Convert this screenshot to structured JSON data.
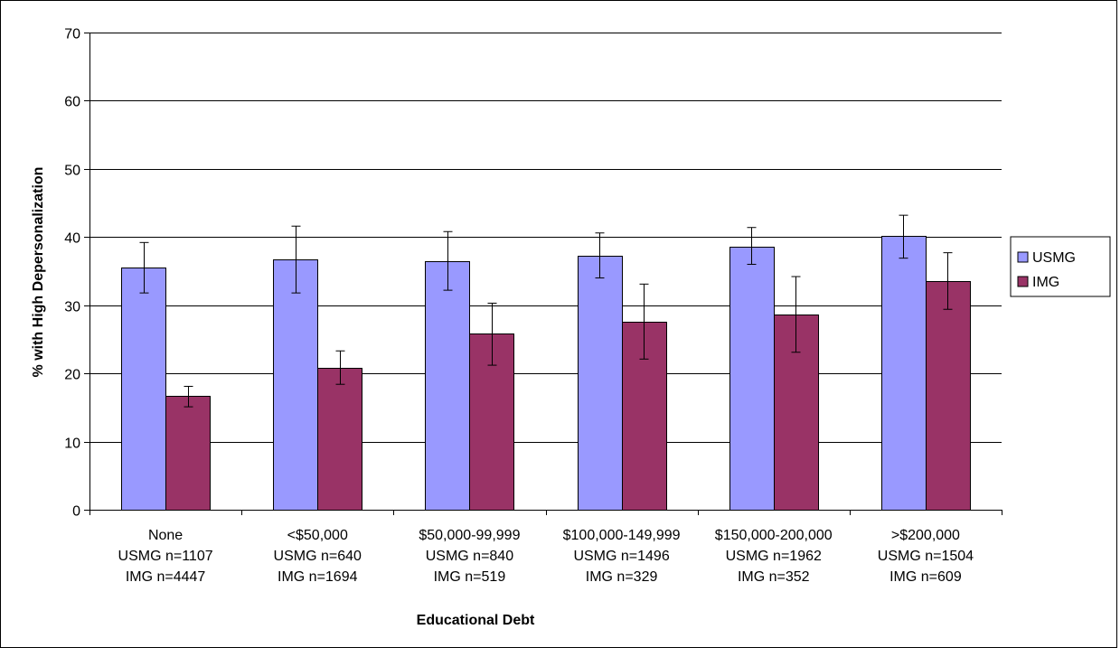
{
  "chart_data": {
    "type": "bar",
    "title": "",
    "xlabel": "Educational Debt",
    "ylabel": "% with High Depersonalization",
    "ylim": [
      0,
      70
    ],
    "yticks": [
      0,
      10,
      20,
      30,
      40,
      50,
      60,
      70
    ],
    "grid": true,
    "legend_position": "right",
    "categories": [
      [
        "None",
        "USMG n=1107",
        "IMG n=4447"
      ],
      [
        "<$50,000",
        "USMG n=640",
        "IMG n=1694"
      ],
      [
        "$50,000-99,999",
        "USMG n=840",
        "IMG n=519"
      ],
      [
        "$100,000-149,999",
        "USMG n=1496",
        "IMG n=329"
      ],
      [
        "$150,000-200,000",
        "USMG n=1962",
        "IMG n=352"
      ],
      [
        ">$200,000",
        "USMG n=1504",
        "IMG n=609"
      ]
    ],
    "series": [
      {
        "name": "USMG",
        "color": "#9999ff",
        "values": [
          35.5,
          36.7,
          36.5,
          37.3,
          38.6,
          40.2
        ],
        "error_low": [
          31.8,
          31.8,
          32.2,
          34.0,
          36.0,
          36.9
        ],
        "error_high": [
          39.2,
          41.6,
          40.8,
          40.6,
          41.4,
          43.2
        ]
      },
      {
        "name": "IMG",
        "color": "#993366",
        "values": [
          16.7,
          20.8,
          25.8,
          27.6,
          28.7,
          33.6
        ],
        "error_low": [
          15.1,
          18.4,
          21.2,
          22.1,
          23.1,
          29.4
        ],
        "error_high": [
          18.1,
          23.3,
          30.3,
          33.1,
          34.2,
          37.7
        ]
      }
    ]
  }
}
